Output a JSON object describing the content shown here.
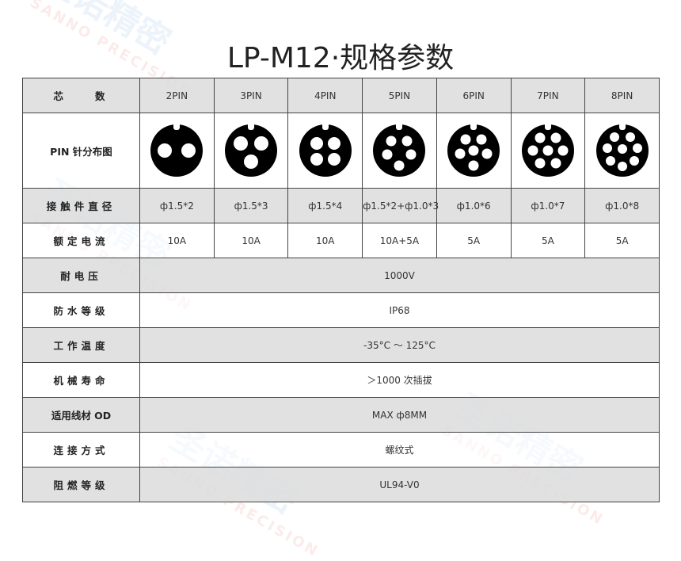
{
  "title": "LP-M12·规格参数",
  "watermark": {
    "cn": "圣诺精密",
    "en": "SANNO PRECISION"
  },
  "header": {
    "label": "芯　　数",
    "pins": [
      "2PIN",
      "3PIN",
      "4PIN",
      "5PIN",
      "6PIN",
      "7PIN",
      "8PIN"
    ]
  },
  "pin_row": {
    "label": "PIN 针分布图",
    "pin_counts": [
      2,
      3,
      4,
      5,
      6,
      7,
      8
    ]
  },
  "contact_diameter": {
    "label": "接触件直径",
    "values": [
      "ф1.5*2",
      "ф1.5*3",
      "ф1.5*4",
      "ф1.5*2+ф1.0*3",
      "ф1.0*6",
      "ф1.0*7",
      "ф1.0*8"
    ]
  },
  "rated_current": {
    "label": "额定电流",
    "values": [
      "10A",
      "10A",
      "10A",
      "10A+5A",
      "5A",
      "5A",
      "5A"
    ]
  },
  "specs": [
    {
      "label": "耐电压",
      "value": "1000V"
    },
    {
      "label": "防水等级",
      "value": "IP68"
    },
    {
      "label": "工作温度",
      "value": "-35°C ～ 125°C"
    },
    {
      "label": "机械寿命",
      "value": "＞1000 次插拔"
    },
    {
      "label": "适用线材 OD",
      "value": "MAX ф8MM"
    },
    {
      "label": "连接方式",
      "value": "螺纹式"
    },
    {
      "label": "阻燃等级",
      "value": "UL94-V0"
    }
  ]
}
